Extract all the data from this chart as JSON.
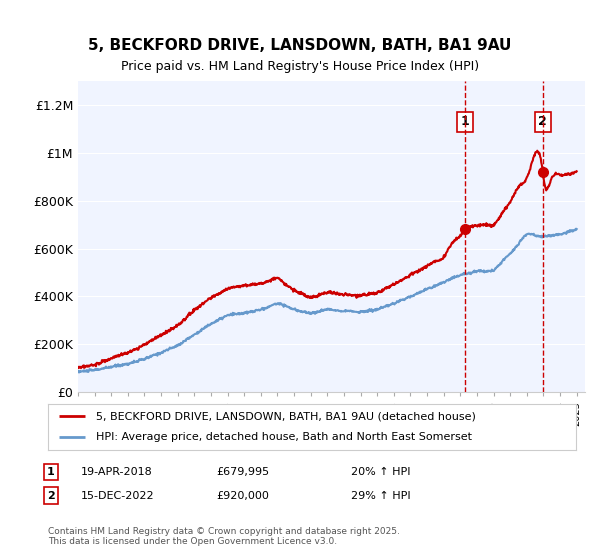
{
  "title": "5, BECKFORD DRIVE, LANSDOWN, BATH, BA1 9AU",
  "subtitle": "Price paid vs. HM Land Registry's House Price Index (HPI)",
  "ylim": [
    0,
    1300000
  ],
  "yticks": [
    0,
    200000,
    400000,
    600000,
    800000,
    1000000,
    1200000
  ],
  "ytick_labels": [
    "£0",
    "£200K",
    "£400K",
    "£600K",
    "£800K",
    "£1M",
    "£1.2M"
  ],
  "sale1_date": "19-APR-2018",
  "sale1_price": 679995,
  "sale1_label": "20% ↑ HPI",
  "sale2_date": "15-DEC-2022",
  "sale2_price": 920000,
  "sale2_label": "29% ↑ HPI",
  "sale1_x": 2018.3,
  "sale2_x": 2022.96,
  "red_line_color": "#cc0000",
  "blue_line_color": "#6699cc",
  "dashed_line_color": "#cc0000",
  "legend_label_red": "5, BECKFORD DRIVE, LANSDOWN, BATH, BA1 9AU (detached house)",
  "legend_label_blue": "HPI: Average price, detached house, Bath and North East Somerset",
  "footer": "Contains HM Land Registry data © Crown copyright and database right 2025.\nThis data is licensed under the Open Government Licence v3.0.",
  "background_color": "#ffffff",
  "plot_bg_color": "#f0f4ff",
  "xmin": 1995,
  "xmax": 2025.5,
  "hpi_years": [
    1995,
    1995.5,
    1996,
    1996.5,
    1997,
    1997.5,
    1998,
    1998.5,
    1999,
    1999.5,
    2000,
    2000.5,
    2001,
    2001.5,
    2002,
    2002.5,
    2003,
    2003.5,
    2004,
    2004.5,
    2005,
    2005.5,
    2006,
    2006.5,
    2007,
    2007.5,
    2008,
    2008.5,
    2009,
    2009.5,
    2010,
    2010.5,
    2011,
    2011.5,
    2012,
    2012.5,
    2013,
    2013.5,
    2014,
    2014.5,
    2015,
    2015.5,
    2016,
    2016.5,
    2017,
    2017.5,
    2018,
    2018.5,
    2019,
    2019.5,
    2020,
    2020.5,
    2021,
    2021.5,
    2022,
    2022.5,
    2023,
    2023.5,
    2024,
    2024.5,
    2025
  ],
  "hpi_vals": [
    85000,
    88000,
    92000,
    98000,
    105000,
    112000,
    118000,
    128000,
    138000,
    152000,
    165000,
    180000,
    195000,
    218000,
    240000,
    263000,
    285000,
    303000,
    320000,
    326000,
    330000,
    337000,
    345000,
    357000,
    370000,
    360000,
    345000,
    337000,
    330000,
    337000,
    345000,
    342000,
    340000,
    337000,
    335000,
    340000,
    345000,
    357000,
    370000,
    385000,
    400000,
    415000,
    430000,
    445000,
    460000,
    475000,
    490000,
    497000,
    505000,
    507000,
    510000,
    545000,
    580000,
    620000,
    660000,
    655000,
    650000,
    655000,
    660000,
    670000,
    680000
  ],
  "red_years": [
    1995,
    1995.5,
    1996,
    1996.5,
    1997,
    1997.5,
    1998,
    1998.5,
    1999,
    1999.5,
    2000,
    2000.5,
    2001,
    2001.5,
    2002,
    2002.5,
    2003,
    2003.5,
    2004,
    2004.5,
    2005,
    2005.5,
    2006,
    2006.5,
    2007,
    2007.5,
    2008,
    2008.5,
    2009,
    2009.5,
    2010,
    2010.5,
    2011,
    2011.5,
    2012,
    2012.5,
    2013,
    2013.5,
    2014,
    2014.5,
    2015,
    2015.5,
    2016,
    2016.5,
    2017,
    2017.5,
    2018,
    2018.3,
    2018.5,
    2019,
    2019.5,
    2020,
    2020.5,
    2021,
    2021.5,
    2022,
    2022.96,
    2023,
    2023.5,
    2024,
    2024.5,
    2025
  ],
  "red_vals": [
    100000,
    108000,
    116000,
    127000,
    140000,
    153000,
    165000,
    180000,
    198000,
    218000,
    238000,
    258000,
    278000,
    310000,
    343000,
    368000,
    393000,
    413000,
    433000,
    440000,
    445000,
    450000,
    455000,
    465000,
    475000,
    450000,
    425000,
    410000,
    395000,
    405000,
    415000,
    412000,
    408000,
    405000,
    403000,
    410000,
    416000,
    433000,
    450000,
    470000,
    490000,
    509000,
    527000,
    546000,
    565000,
    622000,
    655000,
    679995,
    690000,
    697000,
    700000,
    700000,
    748000,
    795000,
    858000,
    895000,
    920000,
    897000,
    893000,
    908000,
    912000,
    918000
  ]
}
